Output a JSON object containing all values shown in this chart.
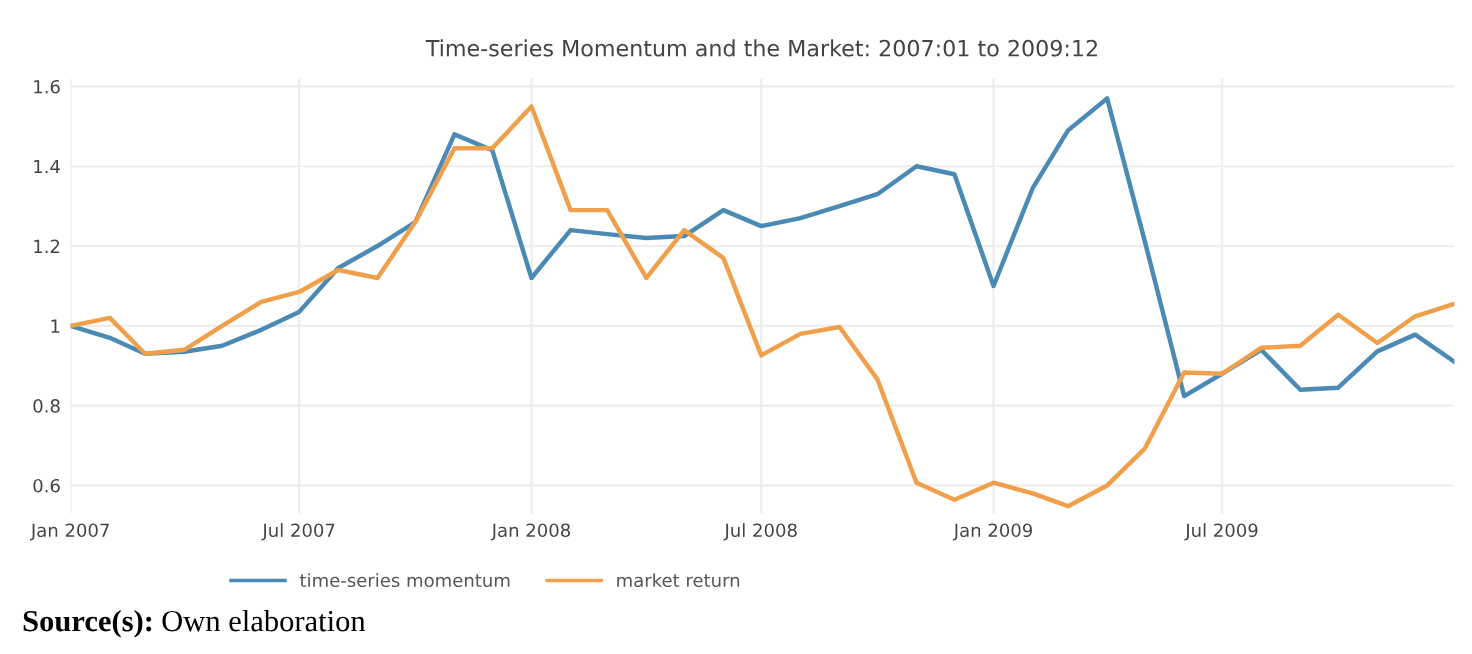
{
  "chart_data": {
    "type": "line",
    "title": "Time-series Momentum and the Market: 2007:01 to 2009:12",
    "x": [
      "2007-01",
      "2007-02",
      "2007-03",
      "2007-04",
      "2007-05",
      "2007-06",
      "2007-07",
      "2007-08",
      "2007-09",
      "2007-10",
      "2007-11",
      "2007-12",
      "2008-01",
      "2008-02",
      "2008-03",
      "2008-04",
      "2008-05",
      "2008-06",
      "2008-07",
      "2008-08",
      "2008-09",
      "2008-10",
      "2008-11",
      "2008-12",
      "2009-01",
      "2009-02",
      "2009-03",
      "2009-04",
      "2009-05",
      "2009-06",
      "2009-07",
      "2009-08",
      "2009-09",
      "2009-10",
      "2009-11",
      "2009-12",
      "2010-01"
    ],
    "series": [
      {
        "name": "time-series momentum",
        "color": "#4a8ab5",
        "values": [
          1.0,
          0.97,
          0.93,
          0.935,
          0.95,
          0.99,
          1.035,
          1.145,
          1.2,
          1.26,
          1.48,
          1.44,
          1.12,
          1.24,
          1.23,
          1.22,
          1.225,
          1.29,
          1.25,
          1.27,
          1.3,
          1.33,
          1.4,
          1.38,
          1.1,
          1.345,
          1.49,
          1.57,
          1.21,
          0.824,
          0.88,
          0.94,
          0.84,
          0.845,
          0.936,
          0.978,
          0.91
        ]
      },
      {
        "name": "market return",
        "color": "#f0a04b",
        "values": [
          1.0,
          1.02,
          0.93,
          0.94,
          1.0,
          1.06,
          1.085,
          1.14,
          1.12,
          1.26,
          1.445,
          1.445,
          1.55,
          1.29,
          1.29,
          1.12,
          1.24,
          1.17,
          0.926,
          0.98,
          0.997,
          0.866,
          0.607,
          0.564,
          0.607,
          0.58,
          0.548,
          0.6,
          0.693,
          0.883,
          0.88,
          0.945,
          0.95,
          1.028,
          0.957,
          1.024,
          1.055
        ]
      }
    ],
    "xlim": [
      "2007-01",
      "2010-01"
    ],
    "xticks": [
      {
        "value": "2007-01",
        "label": "Jan 2007"
      },
      {
        "value": "2007-07",
        "label": "Jul 2007"
      },
      {
        "value": "2008-01",
        "label": "Jan 2008"
      },
      {
        "value": "2008-07",
        "label": "Jul 2008"
      },
      {
        "value": "2009-01",
        "label": "Jan 2009"
      },
      {
        "value": "2009-07",
        "label": "Jul 2009"
      }
    ],
    "ylim": [
      0.53,
      1.62
    ],
    "yticks": [
      {
        "value": 0.6,
        "label": "0.6"
      },
      {
        "value": 0.8,
        "label": "0.8"
      },
      {
        "value": 1,
        "label": "1"
      },
      {
        "value": 1.2,
        "label": "1.2"
      },
      {
        "value": 1.4,
        "label": "1.4"
      },
      {
        "value": 1.6,
        "label": "1.6"
      }
    ],
    "grid": true,
    "legend": "bottom",
    "annotations": [
      "Source(s): Own elaboration"
    ]
  }
}
